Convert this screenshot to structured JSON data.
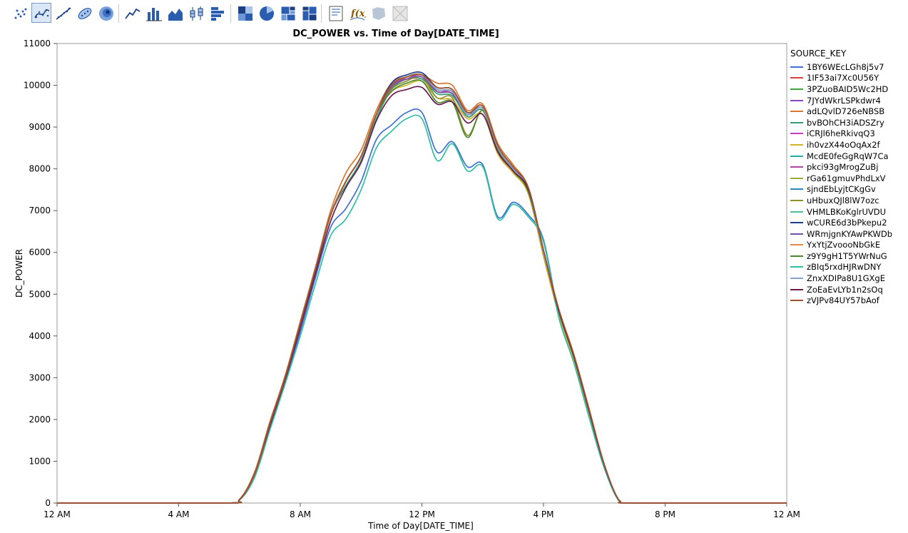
{
  "toolbar": {
    "buttons": [
      {
        "icon": "points-icon",
        "selected": false
      },
      {
        "icon": "smoother-icon",
        "selected": true
      },
      {
        "icon": "line-of-fit-icon",
        "selected": false
      },
      {
        "icon": "ellipse-icon",
        "selected": false
      },
      {
        "icon": "contour-icon",
        "selected": false
      },
      {
        "icon": "line-icon",
        "selected": false
      },
      {
        "icon": "bar-icon",
        "selected": false
      },
      {
        "icon": "area-icon",
        "selected": false
      },
      {
        "icon": "box-plot-icon",
        "selected": false
      },
      {
        "icon": "histogram-icon",
        "selected": false
      },
      {
        "icon": "heatmap-icon",
        "selected": false
      },
      {
        "icon": "pie-icon",
        "selected": false
      },
      {
        "icon": "treemap-icon",
        "selected": false
      },
      {
        "icon": "mosaic-icon",
        "selected": false
      },
      {
        "icon": "caption-box-icon",
        "selected": false
      },
      {
        "icon": "formula-icon",
        "selected": false
      },
      {
        "icon": "map-shapes-icon",
        "selected": false
      },
      {
        "icon": "disabled-map-icon",
        "selected": false
      }
    ]
  },
  "chart_data": {
    "type": "line",
    "title": "DC_POWER vs. Time of Day[DATE_TIME]",
    "xlabel": "Time of Day[DATE_TIME]",
    "ylabel": "DC_POWER",
    "x_unit": "hours",
    "xlim": [
      0,
      24
    ],
    "ylim": [
      0,
      11000
    ],
    "x_ticks": [
      {
        "value": 0,
        "label": "12 AM"
      },
      {
        "value": 4,
        "label": "4 AM"
      },
      {
        "value": 8,
        "label": "8 AM"
      },
      {
        "value": 12,
        "label": "12 PM"
      },
      {
        "value": 16,
        "label": "4 PM"
      },
      {
        "value": 20,
        "label": "8 PM"
      },
      {
        "value": 24,
        "label": "12 AM"
      }
    ],
    "y_ticks": [
      0,
      1000,
      2000,
      3000,
      4000,
      5000,
      6000,
      7000,
      8000,
      9000,
      10000,
      11000
    ],
    "grid": false,
    "legend_title": "SOURCE_KEY",
    "legend_position": "right",
    "base_curve": {
      "x": [
        0,
        5.5,
        6.0,
        6.5,
        7.0,
        7.5,
        8.0,
        8.5,
        9.0,
        9.5,
        10.0,
        10.5,
        11.0,
        11.5,
        12.0,
        12.5,
        13.0,
        13.5,
        14.0,
        14.5,
        15.0,
        15.5,
        16.0,
        16.5,
        17.0,
        17.5,
        18.0,
        18.5,
        19.0,
        24
      ],
      "values": [
        0,
        0,
        80,
        700,
        1900,
        3000,
        4300,
        5600,
        6900,
        7700,
        8300,
        9300,
        10000,
        10200,
        10250,
        9900,
        9850,
        9300,
        9450,
        8500,
        8000,
        7500,
        6000,
        4600,
        3500,
        2200,
        900,
        50,
        0,
        0
      ]
    },
    "series": [
      {
        "name": "1BY6WEcLGh8j5v7",
        "color": "#3f6fd6",
        "values": [
          0,
          0,
          80,
          650,
          1800,
          2900,
          4100,
          5400,
          6600,
          7050,
          7700,
          8700,
          9050,
          9350,
          9350,
          8400,
          8650,
          8050,
          8100,
          6850,
          7200,
          6900,
          6300,
          4500,
          3400,
          2100,
          850,
          40,
          0,
          0
        ]
      },
      {
        "name": "1IF53ai7Xc0U56Y",
        "color": "#d94040",
        "values": [
          0,
          0,
          80,
          700,
          1900,
          3000,
          4300,
          5600,
          6900,
          7700,
          8300,
          9300,
          10050,
          10150,
          10150,
          9850,
          9800,
          9250,
          9400,
          8450,
          7950,
          7450,
          6000,
          4550,
          3450,
          2150,
          880,
          45,
          0,
          0
        ]
      },
      {
        "name": "3PZuoBAID5Wc2HD",
        "color": "#3fa33f",
        "values": [
          0,
          0,
          80,
          700,
          1900,
          3000,
          4300,
          5600,
          6900,
          7700,
          8300,
          9300,
          9950,
          10200,
          10250,
          9900,
          9850,
          9300,
          9450,
          8500,
          8000,
          7500,
          6000,
          4600,
          3500,
          2200,
          900,
          50,
          0,
          0
        ]
      },
      {
        "name": "7JYdWkrLSPkdwr4",
        "color": "#8a45c4",
        "values": [
          0,
          0,
          80,
          700,
          1900,
          3000,
          4300,
          5600,
          6900,
          7700,
          8300,
          9300,
          9950,
          10200,
          10250,
          9900,
          9850,
          9300,
          9450,
          8500,
          8000,
          7500,
          6000,
          4600,
          3500,
          2200,
          900,
          50,
          0,
          0
        ]
      },
      {
        "name": "adLQvlD726eNBSB",
        "color": "#d9772e",
        "values": [
          0,
          0,
          90,
          750,
          1950,
          3050,
          4350,
          5650,
          7000,
          7900,
          8450,
          9400,
          10050,
          10200,
          10250,
          10050,
          10000,
          9400,
          9550,
          8600,
          8100,
          7550,
          6050,
          4650,
          3550,
          2250,
          920,
          55,
          0,
          0
        ]
      },
      {
        "name": "bvBOhCH3iADSZry",
        "color": "#2f9e7a",
        "values": [
          0,
          0,
          80,
          700,
          1900,
          3000,
          4300,
          5600,
          6900,
          7600,
          8200,
          9200,
          9900,
          10150,
          10150,
          9800,
          9750,
          9250,
          9400,
          8450,
          7950,
          7450,
          5950,
          4550,
          3450,
          2150,
          880,
          45,
          0,
          0
        ]
      },
      {
        "name": "iCRJl6heRkivqQ3",
        "color": "#c23fc2",
        "values": [
          0,
          0,
          80,
          700,
          1900,
          3000,
          4300,
          5600,
          6900,
          7700,
          8300,
          9300,
          10000,
          10150,
          10250,
          9850,
          9850,
          9300,
          9450,
          8500,
          8000,
          7500,
          6000,
          4600,
          3500,
          2200,
          900,
          50,
          0,
          0
        ]
      },
      {
        "name": "ih0vzX44oOqAx2f",
        "color": "#d1b52c",
        "values": [
          0,
          0,
          80,
          700,
          1900,
          3000,
          4300,
          5600,
          6900,
          7700,
          8300,
          9300,
          9850,
          10000,
          10100,
          9700,
          9650,
          9200,
          9300,
          8350,
          7900,
          7400,
          5900,
          4500,
          3400,
          2100,
          860,
          40,
          0,
          0
        ]
      },
      {
        "name": "McdE0feGgRqW7Ca",
        "color": "#2aa9a9",
        "values": [
          0,
          0,
          80,
          700,
          1900,
          3000,
          4300,
          5600,
          6900,
          7700,
          8300,
          9300,
          10000,
          10200,
          10250,
          9900,
          9850,
          9300,
          9450,
          8500,
          8000,
          7500,
          6000,
          4600,
          3500,
          2200,
          900,
          50,
          0,
          0
        ]
      },
      {
        "name": "pkci93gMrogZuBj",
        "color": "#b0459e",
        "values": [
          0,
          0,
          80,
          700,
          1900,
          3000,
          4300,
          5600,
          6900,
          7700,
          8300,
          9300,
          10000,
          10200,
          10250,
          9900,
          9850,
          9300,
          9450,
          8500,
          8000,
          7500,
          6000,
          4600,
          3500,
          2200,
          900,
          50,
          0,
          0
        ]
      },
      {
        "name": "rGa61gmuvPhdLxV",
        "color": "#9aaa33",
        "values": [
          0,
          0,
          80,
          700,
          1900,
          3000,
          4300,
          5600,
          6900,
          7700,
          8300,
          9300,
          9950,
          10150,
          10200,
          9850,
          9800,
          9300,
          9450,
          8500,
          8000,
          7500,
          6000,
          4600,
          3500,
          2200,
          900,
          50,
          0,
          0
        ]
      },
      {
        "name": "sjndEbLyjtCKgGv",
        "color": "#2e86c1",
        "values": [
          0,
          0,
          80,
          700,
          1900,
          3000,
          4300,
          5600,
          6900,
          7700,
          8300,
          9300,
          10000,
          10200,
          10250,
          9900,
          9850,
          9300,
          9450,
          8500,
          8000,
          7500,
          6000,
          4600,
          3500,
          2200,
          900,
          50,
          0,
          0
        ]
      },
      {
        "name": "uHbuxQJl8lW7ozc",
        "color": "#8f8f2a",
        "values": [
          0,
          0,
          80,
          700,
          1900,
          3000,
          4300,
          5600,
          6900,
          7700,
          8300,
          9300,
          9900,
          10100,
          10200,
          9700,
          9700,
          8800,
          9400,
          8450,
          7950,
          7450,
          6000,
          4600,
          3500,
          2200,
          900,
          50,
          0,
          0
        ]
      },
      {
        "name": "VHMLBKoKglrUVDU",
        "color": "#4fbf8f",
        "values": [
          0,
          0,
          80,
          700,
          1900,
          3000,
          4300,
          5600,
          6900,
          7700,
          8300,
          9300,
          10000,
          10200,
          10250,
          9900,
          9850,
          9300,
          9450,
          8500,
          8000,
          7500,
          6000,
          4600,
          3500,
          2200,
          900,
          50,
          0,
          0
        ]
      },
      {
        "name": "wCURE6d3bPkepu2",
        "color": "#1f3c88",
        "values": [
          0,
          0,
          80,
          700,
          1900,
          3000,
          4300,
          5600,
          6900,
          7700,
          8300,
          9300,
          10050,
          10250,
          10300,
          9950,
          9900,
          9350,
          9450,
          8500,
          8000,
          7550,
          6050,
          4600,
          3500,
          2200,
          900,
          50,
          0,
          0
        ]
      },
      {
        "name": "WRmjgnKYAwPKWDb",
        "color": "#7a4fa8",
        "values": [
          0,
          0,
          80,
          700,
          1900,
          3000,
          4300,
          5600,
          6900,
          7700,
          8300,
          9300,
          9950,
          10150,
          10200,
          9850,
          9800,
          9300,
          9450,
          8500,
          8000,
          7500,
          6000,
          4600,
          3500,
          2200,
          900,
          50,
          0,
          0
        ]
      },
      {
        "name": "YxYtjZvoooNbGkE",
        "color": "#e08a50",
        "values": [
          0,
          0,
          80,
          700,
          1900,
          3000,
          4300,
          5600,
          6900,
          7700,
          8300,
          9300,
          10000,
          10200,
          10250,
          9900,
          9850,
          9300,
          9450,
          8500,
          8000,
          7500,
          6000,
          4600,
          3500,
          2200,
          900,
          50,
          0,
          0
        ]
      },
      {
        "name": "z9Y9gH1T5YWrNuG",
        "color": "#4a8a2f",
        "values": [
          0,
          0,
          80,
          700,
          1900,
          3000,
          4300,
          5600,
          6900,
          7700,
          8300,
          9300,
          9850,
          10050,
          10100,
          9600,
          9600,
          8750,
          9400,
          8450,
          7950,
          7450,
          6000,
          4600,
          3500,
          2200,
          900,
          50,
          0,
          0
        ]
      },
      {
        "name": "zBIq5rxdHJRwDNY",
        "color": "#2fbfa5",
        "values": [
          0,
          0,
          70,
          620,
          1750,
          2850,
          4000,
          5250,
          6400,
          6800,
          7500,
          8500,
          8900,
          9200,
          9200,
          8200,
          8600,
          7950,
          8050,
          6800,
          7150,
          6850,
          6250,
          4450,
          3350,
          2050,
          830,
          35,
          0,
          0
        ]
      },
      {
        "name": "ZnxXDIPa8U1GXgE",
        "color": "#8aa0d0",
        "values": [
          0,
          0,
          80,
          700,
          1900,
          3000,
          4300,
          5600,
          6900,
          7700,
          8300,
          9300,
          10000,
          10200,
          10250,
          9900,
          9850,
          9300,
          9450,
          8500,
          8000,
          7500,
          6000,
          4600,
          3500,
          2200,
          900,
          50,
          0,
          0
        ]
      },
      {
        "name": "ZoEaEvLYb1n2sOq",
        "color": "#6a1b4d",
        "values": [
          0,
          0,
          80,
          700,
          1850,
          2950,
          4200,
          5500,
          6750,
          7550,
          8150,
          9150,
          9750,
          9900,
          9950,
          9550,
          9600,
          9100,
          9300,
          8400,
          7950,
          7500,
          6050,
          4600,
          3500,
          2200,
          900,
          50,
          0,
          0
        ]
      },
      {
        "name": "zVJPv84UY57bAof",
        "color": "#a0522d",
        "values": [
          0,
          0,
          80,
          700,
          1900,
          3000,
          4300,
          5600,
          6900,
          7700,
          8300,
          9300,
          10000,
          10200,
          10250,
          9950,
          9900,
          9350,
          9500,
          8550,
          8050,
          7550,
          6050,
          4650,
          3550,
          2250,
          920,
          55,
          0,
          0
        ]
      }
    ]
  }
}
